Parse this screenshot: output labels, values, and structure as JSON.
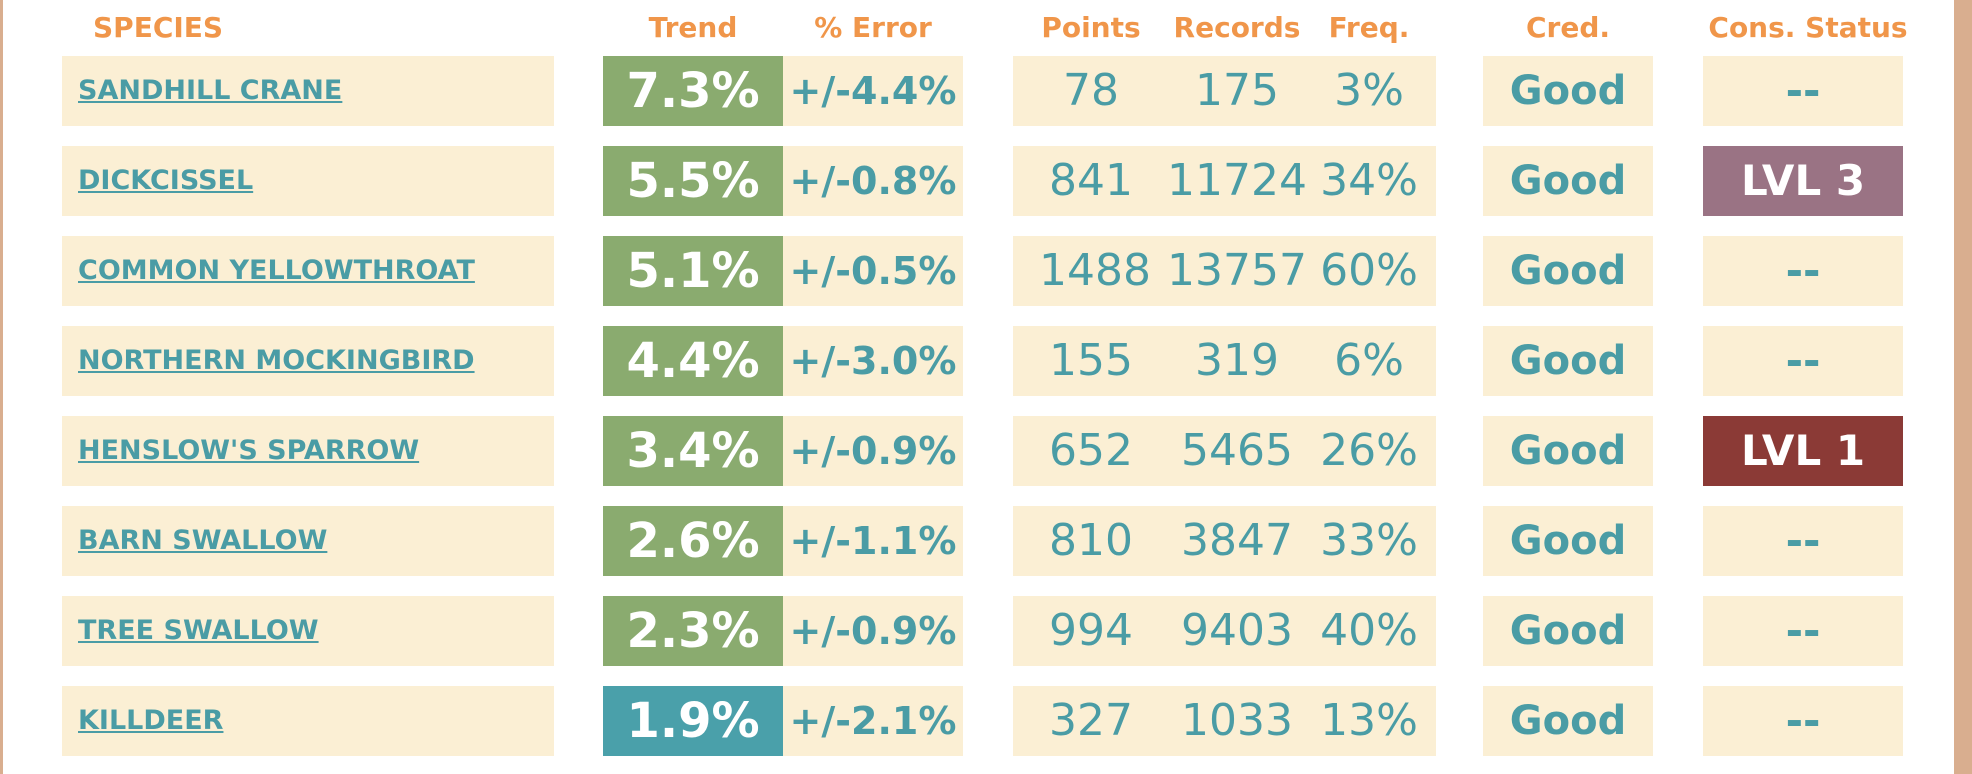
{
  "headers": {
    "species": "SPECIES",
    "trend": "Trend",
    "error": "% Error",
    "points": "Points",
    "records": "Records",
    "freq": "Freq.",
    "cred": "Cred.",
    "status": "Cons. Status"
  },
  "colors": {
    "trend_green": "#8aab6f",
    "trend_teal": "#4aa0aa",
    "status_lvl3": "#9a7384",
    "status_lvl1": "#8b3a36",
    "text_teal": "#4a9ca5",
    "header_orange": "#f0964a",
    "cell_bg": "#fbefd4"
  },
  "rows": [
    {
      "species": "SANDHILL CRANE",
      "trend": "7.3%",
      "error": "+/-4.4%",
      "points": "78",
      "records": "175",
      "freq": "3%",
      "cred": "Good",
      "status": "--",
      "trend_color": "#8aab6f",
      "status_color": ""
    },
    {
      "species": "DICKCISSEL",
      "trend": "5.5%",
      "error": "+/-0.8%",
      "points": "841",
      "records": "11724",
      "freq": "34%",
      "cred": "Good",
      "status": "LVL 3",
      "trend_color": "#8aab6f",
      "status_color": "#9a7384"
    },
    {
      "species": "COMMON YELLOWTHROAT",
      "trend": "5.1%",
      "error": "+/-0.5%",
      "points": "1488",
      "records": "13757",
      "freq": "60%",
      "cred": "Good",
      "status": "--",
      "trend_color": "#8aab6f",
      "status_color": ""
    },
    {
      "species": "NORTHERN MOCKINGBIRD",
      "trend": "4.4%",
      "error": "+/-3.0%",
      "points": "155",
      "records": "319",
      "freq": "6%",
      "cred": "Good",
      "status": "--",
      "trend_color": "#8aab6f",
      "status_color": ""
    },
    {
      "species": "HENSLOW'S SPARROW",
      "trend": "3.4%",
      "error": "+/-0.9%",
      "points": "652",
      "records": "5465",
      "freq": "26%",
      "cred": "Good",
      "status": "LVL 1",
      "trend_color": "#8aab6f",
      "status_color": "#8b3a36"
    },
    {
      "species": "BARN SWALLOW",
      "trend": "2.6%",
      "error": "+/-1.1%",
      "points": "810",
      "records": "3847",
      "freq": "33%",
      "cred": "Good",
      "status": "--",
      "trend_color": "#8aab6f",
      "status_color": ""
    },
    {
      "species": "TREE SWALLOW",
      "trend": "2.3%",
      "error": "+/-0.9%",
      "points": "994",
      "records": "9403",
      "freq": "40%",
      "cred": "Good",
      "status": "--",
      "trend_color": "#8aab6f",
      "status_color": ""
    },
    {
      "species": "KILLDEER",
      "trend": "1.9%",
      "error": "+/-2.1%",
      "points": "327",
      "records": "1033",
      "freq": "13%",
      "cred": "Good",
      "status": "--",
      "trend_color": "#4aa0aa",
      "status_color": ""
    }
  ]
}
